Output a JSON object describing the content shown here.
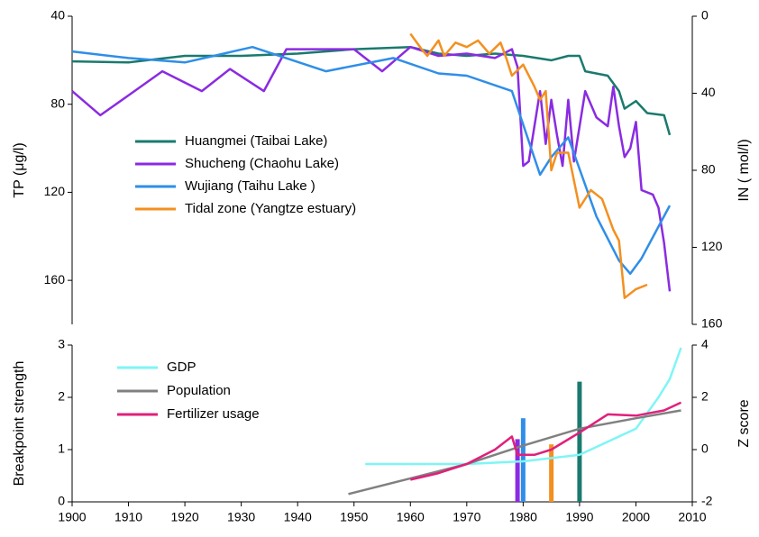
{
  "chart_data": [
    {
      "type": "line",
      "ylabel": "TP (μg/l)",
      "y2label": "IN ( mol/l)",
      "xlim": [
        1900,
        2010
      ],
      "ylim": [
        40,
        180
      ],
      "yticks": [
        40,
        80,
        120,
        160
      ],
      "y_inverted": true,
      "y2lim": [
        0,
        160
      ],
      "y2ticks": [
        0,
        40,
        80,
        120,
        160
      ],
      "y2_inverted": true,
      "series": [
        {
          "name": "Huangmei (Taibai Lake)",
          "color": "#1a7a6e",
          "x": [
            1900,
            1910,
            1920,
            1930,
            1940,
            1950,
            1960,
            1965,
            1970,
            1975,
            1980,
            1985,
            1988,
            1990,
            1991,
            1995,
            1997,
            1998,
            2000,
            2002,
            2005,
            2006
          ],
          "values": [
            60.5,
            61,
            58,
            58,
            57,
            55,
            54,
            57,
            58,
            57,
            58,
            60,
            58,
            58,
            65,
            67,
            74,
            82,
            78.5,
            84,
            85,
            94
          ]
        },
        {
          "name": "Shucheng (Chaohu Lake)",
          "color": "#8a2be2",
          "x": [
            1900,
            1905,
            1910,
            1916,
            1923,
            1928,
            1934,
            1938,
            1950,
            1955,
            1960,
            1965,
            1970,
            1975,
            1978,
            1979,
            1980,
            1981,
            1983,
            1984,
            1985,
            1986,
            1987,
            1988,
            1989,
            1991,
            1993,
            1995,
            1996,
            1997,
            1998,
            1999,
            2000,
            2001,
            2003,
            2004,
            2005,
            2006
          ],
          "values": [
            74,
            85,
            76,
            65,
            74,
            64,
            74,
            55,
            55,
            65,
            54,
            58,
            57,
            59,
            55,
            63,
            108,
            106,
            74,
            98,
            78,
            94,
            108,
            78,
            106,
            74,
            86,
            90,
            72,
            90,
            104,
            100,
            88,
            119,
            121,
            127,
            143,
            165
          ]
        },
        {
          "name": "Wujiang (Taihu Lake )",
          "color": "#2f8ee8",
          "x": [
            1900,
            1910,
            1920,
            1932,
            1945,
            1957,
            1965,
            1970,
            1978,
            1983,
            1985,
            1988,
            1993,
            1997,
            1999,
            2001,
            2006
          ],
          "values": [
            56,
            59,
            61,
            54,
            65,
            59,
            66,
            67,
            74,
            112,
            104,
            95,
            131,
            151,
            157,
            150,
            126
          ]
        },
        {
          "name": "Tidal zone (Yangtze estuary)",
          "color": "#f39020",
          "x": [
            1960,
            1962,
            1963,
            1965,
            1966,
            1968,
            1970,
            1972,
            1974,
            1976,
            1977,
            1978,
            1980,
            1982,
            1983,
            1984,
            1985,
            1986,
            1988,
            1990,
            1992,
            1994,
            1996,
            1997,
            1998,
            2000,
            2002
          ],
          "values": [
            48,
            55,
            58,
            51,
            58,
            52,
            54,
            51,
            57,
            52,
            59,
            67,
            62,
            72,
            78,
            74,
            110,
            102,
            102,
            127,
            119,
            123,
            137,
            142,
            168,
            164,
            162
          ]
        }
      ]
    },
    {
      "type": "line",
      "ylabel": "Breakpoint strength",
      "y2label": "Z score",
      "xlim": [
        1900,
        2010
      ],
      "xticks": [
        1900,
        1910,
        1920,
        1930,
        1940,
        1950,
        1960,
        1970,
        1980,
        1990,
        2000,
        2010
      ],
      "ylim": [
        0,
        3
      ],
      "yticks": [
        0,
        1,
        2,
        3
      ],
      "y2lim": [
        -2,
        4
      ],
      "y2ticks": [
        -2,
        0,
        2,
        4
      ],
      "series": [
        {
          "name": "GDP",
          "color": "#7ff5f5",
          "axis": "y2",
          "x": [
            1952,
            1970,
            1980,
            1990,
            1995,
            2000,
            2004,
            2006,
            2008
          ],
          "values": [
            -0.55,
            -0.55,
            -0.45,
            -0.2,
            0.3,
            0.8,
            2.0,
            2.7,
            3.9
          ]
        },
        {
          "name": "Population",
          "color": "#808080",
          "axis": "y2",
          "x": [
            1949,
            1960,
            1970,
            1980,
            1990,
            2000,
            2008
          ],
          "values": [
            -1.7,
            -1.1,
            -0.55,
            0.15,
            0.8,
            1.2,
            1.5
          ]
        },
        {
          "name": "Fertilizer usage",
          "color": "#e0207a",
          "axis": "y2",
          "x": [
            1960,
            1965,
            1970,
            1975,
            1978,
            1979,
            1982,
            1985,
            1990,
            1995,
            2000,
            2005,
            2008
          ],
          "values": [
            -1.15,
            -0.9,
            -0.55,
            0,
            0.5,
            -0.2,
            -0.2,
            0,
            0.65,
            1.35,
            1.3,
            1.5,
            1.8
          ]
        }
      ],
      "bars": {
        "x": [
          1979,
          1980,
          1985,
          1990
        ],
        "values": [
          1.2,
          1.6,
          1.1,
          2.3
        ],
        "colors": [
          "#8a2be2",
          "#2f8ee8",
          "#f39020",
          "#1a7a6e"
        ]
      }
    }
  ]
}
